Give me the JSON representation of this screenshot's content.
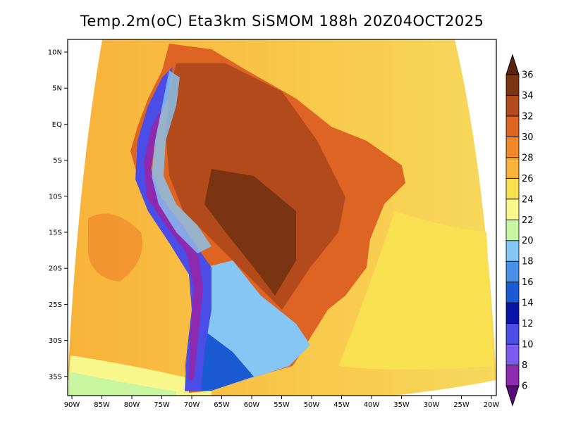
{
  "title": "Temp.2m(oC) Eta3km SiSMOM 188h 20Z04OCT2025",
  "latitude_labels": [
    "10N",
    "5N",
    "EQ",
    "5S",
    "10S",
    "15S",
    "20S",
    "25S",
    "30S",
    "35S"
  ],
  "longitude_labels": [
    "90W",
    "85W",
    "80W",
    "75W",
    "70W",
    "65W",
    "60W",
    "55W",
    "50W",
    "45W",
    "40W",
    "35W",
    "30W",
    "25W",
    "20W"
  ],
  "colorbar": {
    "labels": [
      "6",
      "8",
      "10",
      "12",
      "14",
      "16",
      "18",
      "20",
      "22",
      "24",
      "26",
      "28",
      "30",
      "32",
      "34",
      "36"
    ],
    "colors": [
      "#5a0a7a",
      "#8e2ab0",
      "#7a5cf0",
      "#4a4ee6",
      "#0a14a8",
      "#1a5ad2",
      "#4a90e8",
      "#86c6f4",
      "#c8f5a0",
      "#f7f78c",
      "#f8e050",
      "#f8b23a",
      "#f0882a",
      "#de6424",
      "#b24a1c",
      "#7a3412",
      "#5a2410"
    ]
  }
}
